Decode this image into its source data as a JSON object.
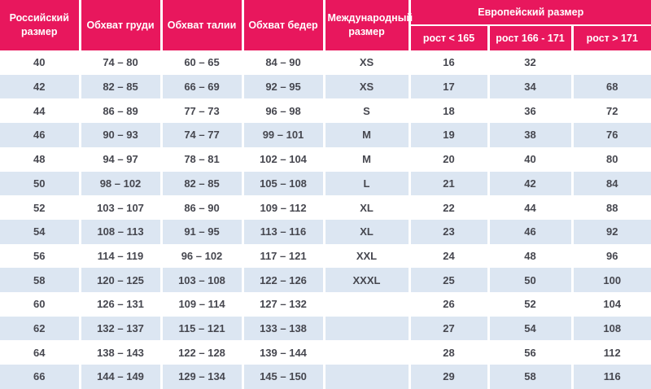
{
  "table": {
    "header": {
      "columns": [
        "Российский размер",
        "Обхват груди",
        "Обхват талии",
        "Обхват бедер",
        "Международный размер"
      ],
      "european_group": "Европейский размер",
      "european_sub": [
        "рост < 165",
        "рост 166 - 171",
        "рост > 171"
      ]
    },
    "rows": [
      [
        "40",
        "74 – 80",
        "60 – 65",
        "84 – 90",
        "XS",
        "16",
        "32",
        ""
      ],
      [
        "42",
        "82 – 85",
        "66 – 69",
        "92 – 95",
        "XS",
        "17",
        "34",
        "68"
      ],
      [
        "44",
        "86 – 89",
        "77 – 73",
        "96 – 98",
        "S",
        "18",
        "36",
        "72"
      ],
      [
        "46",
        "90 – 93",
        "74 – 77",
        "99 – 101",
        "M",
        "19",
        "38",
        "76"
      ],
      [
        "48",
        "94 – 97",
        "78 – 81",
        "102 – 104",
        "M",
        "20",
        "40",
        "80"
      ],
      [
        "50",
        "98 – 102",
        "82 – 85",
        "105 – 108",
        "L",
        "21",
        "42",
        "84"
      ],
      [
        "52",
        "103 – 107",
        "86 – 90",
        "109 – 112",
        "XL",
        "22",
        "44",
        "88"
      ],
      [
        "54",
        "108 – 113",
        "91 – 95",
        "113 – 116",
        "XL",
        "23",
        "46",
        "92"
      ],
      [
        "56",
        "114 – 119",
        "96 – 102",
        "117 – 121",
        "XXL",
        "24",
        "48",
        "96"
      ],
      [
        "58",
        "120 – 125",
        "103 – 108",
        "122 – 126",
        "XXXL",
        "25",
        "50",
        "100"
      ],
      [
        "60",
        "126 – 131",
        "109 – 114",
        "127 – 132",
        "",
        "26",
        "52",
        "104"
      ],
      [
        "62",
        "132 – 137",
        "115 – 121",
        "133 – 138",
        "",
        "27",
        "54",
        "108"
      ],
      [
        "64",
        "138 – 143",
        "122 – 128",
        "139 – 144",
        "",
        "28",
        "56",
        "112"
      ],
      [
        "66",
        "144 – 149",
        "129 – 134",
        "145 – 150",
        "",
        "29",
        "58",
        "116"
      ]
    ],
    "colors": {
      "header_bg": "#E8175D",
      "row_alt_bg": "#DCE6F2",
      "row_bg": "#FFFFFF",
      "cell_text": "#46474F",
      "header_text": "#FFFFFF"
    }
  }
}
